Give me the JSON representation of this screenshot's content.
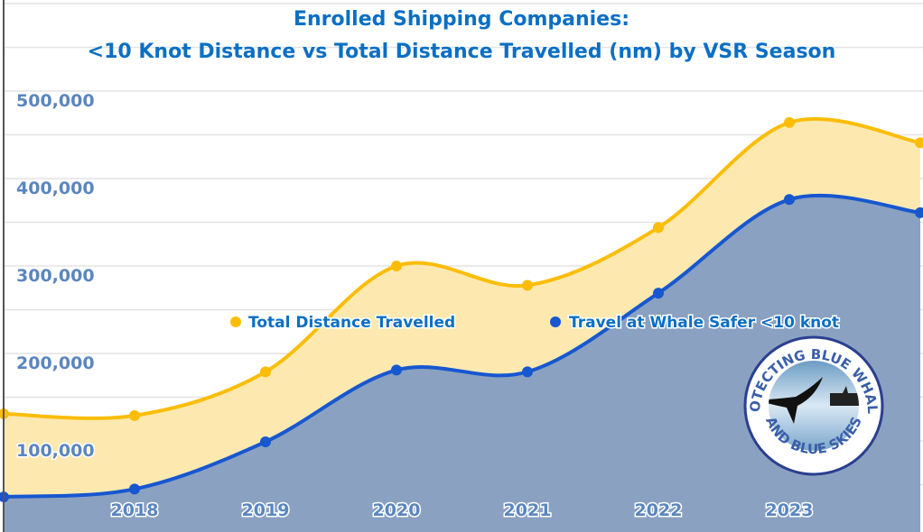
{
  "chart_data": {
    "type": "area",
    "title_line1": "Enrolled Shipping Companies:",
    "title_line2": "<10 Knot Distance vs Total Distance Travelled (nm) by VSR Season",
    "xlabel": "",
    "ylabel": "",
    "categories": [
      "",
      "2018",
      "2019",
      "2020",
      "2021",
      "2022",
      "2023",
      ""
    ],
    "ylim": [
      0,
      500000
    ],
    "yticks": [
      "100,000",
      "200,000",
      "300,000",
      "400,000",
      "500,000"
    ],
    "grid": true,
    "legend_position": "center",
    "series": [
      {
        "name": "Total Distance Travelled",
        "color": "#fbbd08",
        "fill": "#fde9b0",
        "values": [
          131000,
          129000,
          179000,
          300000,
          278000,
          344000,
          464000,
          441000
        ]
      },
      {
        "name": "Travel at Whale Safer <10 knot",
        "color": "#1757d0",
        "fill": "#8aa1c1",
        "values": [
          36000,
          45000,
          99000,
          181000,
          179000,
          269000,
          376000,
          361000
        ]
      }
    ]
  },
  "logo": {
    "top_text": "PROTECTING BLUE WHALES",
    "bottom_text": "AND BLUE SKIES"
  }
}
